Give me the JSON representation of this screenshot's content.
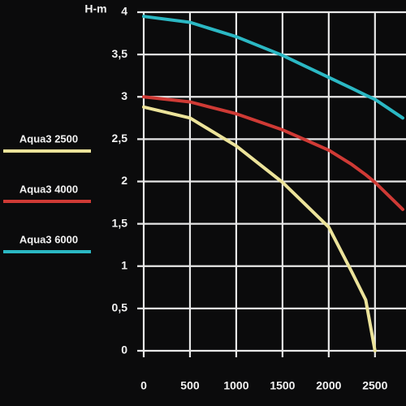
{
  "chart_data": {
    "type": "line",
    "y_label": "H-m",
    "x": [
      0,
      500,
      1000,
      1500,
      2000,
      2250,
      2400,
      2500,
      2800
    ],
    "series": [
      {
        "name": "Aqua3 2500",
        "color": "#ece39a",
        "values": [
          2.88,
          2.75,
          2.42,
          1.99,
          1.46,
          0.93,
          0.6,
          0,
          null
        ]
      },
      {
        "name": "Aqua3 4000",
        "color": "#cf3a35",
        "values": [
          3.0,
          2.94,
          2.8,
          2.61,
          2.37,
          2.2,
          2.08,
          1.99,
          1.67
        ]
      },
      {
        "name": "Aqua3 6000",
        "color": "#2bb8c4",
        "values": [
          3.95,
          3.88,
          3.71,
          3.49,
          3.23,
          3.1,
          3.02,
          2.97,
          2.75
        ]
      }
    ],
    "xlim": [
      0,
      2800
    ],
    "ylim": [
      0,
      4
    ],
    "xticks": [
      0,
      500,
      1000,
      1500,
      2000,
      2500
    ],
    "yticks": [
      0,
      {
        "value": 0.5,
        "label": "0,5"
      },
      1,
      {
        "value": 1.5,
        "label": "1,5"
      },
      2,
      {
        "value": 2.5,
        "label": "2,5"
      },
      3,
      {
        "value": 3.5,
        "label": "3,5"
      },
      4
    ],
    "grid": true
  }
}
